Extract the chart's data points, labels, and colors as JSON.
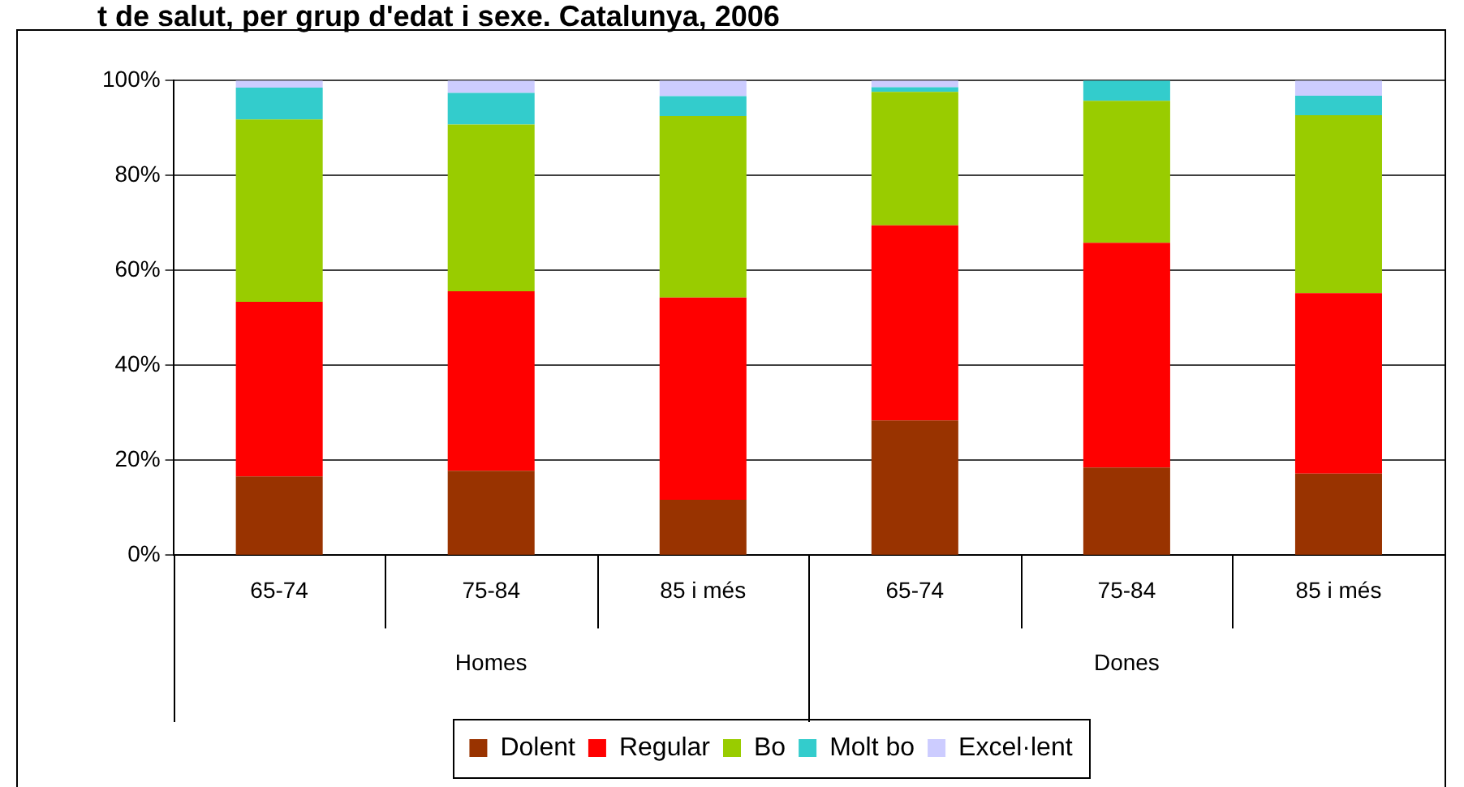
{
  "chart_data": {
    "type": "bar",
    "title": "t de salut, per grup d'edat i sexe. Catalunya, 2006",
    "categories": [
      "65-74",
      "75-84",
      "85 i més",
      "65-74",
      "75-84",
      "85 i més"
    ],
    "annotations": [
      "Homes",
      "Dones"
    ],
    "stacked": true,
    "series": [
      {
        "name": "Dolent",
        "color": "#993300",
        "values": [
          16.6,
          17.8,
          11.7,
          28.4,
          18.5,
          17.2
        ]
      },
      {
        "name": "Regular",
        "color": "#ff0000",
        "values": [
          36.8,
          37.8,
          42.6,
          41.1,
          47.3,
          38.0
        ]
      },
      {
        "name": "Bo",
        "color": "#99cc00",
        "values": [
          38.4,
          35.1,
          38.2,
          28.1,
          29.9,
          37.5
        ]
      },
      {
        "name": "Molt bo",
        "color": "#33cccc",
        "values": [
          6.7,
          6.7,
          4.2,
          1.0,
          4.3,
          4.1
        ]
      },
      {
        "name": "Excel·lent",
        "color": "#ccccff",
        "values": [
          1.5,
          2.6,
          3.3,
          1.4,
          0,
          3.2
        ]
      }
    ],
    "ylim": [
      0,
      100
    ],
    "yticks": [
      {
        "value": 0,
        "label": "0%"
      },
      {
        "value": 20,
        "label": "20%"
      },
      {
        "value": 40,
        "label": "40%"
      },
      {
        "value": 60,
        "label": "60%"
      },
      {
        "value": 80,
        "label": "80%"
      },
      {
        "value": 100,
        "label": "100%"
      }
    ],
    "grid": "y",
    "legend": "bottom"
  }
}
